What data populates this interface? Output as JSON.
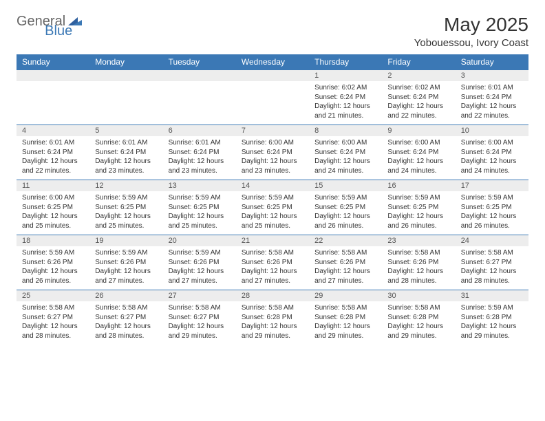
{
  "brand": {
    "part1": "General",
    "part2": "Blue"
  },
  "title": "May 2025",
  "location": "Yobouessou, Ivory Coast",
  "colors": {
    "header_bg": "#3b78b5",
    "header_text": "#ffffff",
    "daynum_bg": "#ededed",
    "border": "#3b78b5",
    "text": "#333333"
  },
  "weekdays": [
    "Sunday",
    "Monday",
    "Tuesday",
    "Wednesday",
    "Thursday",
    "Friday",
    "Saturday"
  ],
  "weeks": [
    [
      null,
      null,
      null,
      null,
      {
        "n": "1",
        "sr": "6:02 AM",
        "ss": "6:24 PM",
        "dl": "12 hours and 21 minutes."
      },
      {
        "n": "2",
        "sr": "6:02 AM",
        "ss": "6:24 PM",
        "dl": "12 hours and 22 minutes."
      },
      {
        "n": "3",
        "sr": "6:01 AM",
        "ss": "6:24 PM",
        "dl": "12 hours and 22 minutes."
      }
    ],
    [
      {
        "n": "4",
        "sr": "6:01 AM",
        "ss": "6:24 PM",
        "dl": "12 hours and 22 minutes."
      },
      {
        "n": "5",
        "sr": "6:01 AM",
        "ss": "6:24 PM",
        "dl": "12 hours and 23 minutes."
      },
      {
        "n": "6",
        "sr": "6:01 AM",
        "ss": "6:24 PM",
        "dl": "12 hours and 23 minutes."
      },
      {
        "n": "7",
        "sr": "6:00 AM",
        "ss": "6:24 PM",
        "dl": "12 hours and 23 minutes."
      },
      {
        "n": "8",
        "sr": "6:00 AM",
        "ss": "6:24 PM",
        "dl": "12 hours and 24 minutes."
      },
      {
        "n": "9",
        "sr": "6:00 AM",
        "ss": "6:24 PM",
        "dl": "12 hours and 24 minutes."
      },
      {
        "n": "10",
        "sr": "6:00 AM",
        "ss": "6:24 PM",
        "dl": "12 hours and 24 minutes."
      }
    ],
    [
      {
        "n": "11",
        "sr": "6:00 AM",
        "ss": "6:25 PM",
        "dl": "12 hours and 25 minutes."
      },
      {
        "n": "12",
        "sr": "5:59 AM",
        "ss": "6:25 PM",
        "dl": "12 hours and 25 minutes."
      },
      {
        "n": "13",
        "sr": "5:59 AM",
        "ss": "6:25 PM",
        "dl": "12 hours and 25 minutes."
      },
      {
        "n": "14",
        "sr": "5:59 AM",
        "ss": "6:25 PM",
        "dl": "12 hours and 25 minutes."
      },
      {
        "n": "15",
        "sr": "5:59 AM",
        "ss": "6:25 PM",
        "dl": "12 hours and 26 minutes."
      },
      {
        "n": "16",
        "sr": "5:59 AM",
        "ss": "6:25 PM",
        "dl": "12 hours and 26 minutes."
      },
      {
        "n": "17",
        "sr": "5:59 AM",
        "ss": "6:25 PM",
        "dl": "12 hours and 26 minutes."
      }
    ],
    [
      {
        "n": "18",
        "sr": "5:59 AM",
        "ss": "6:26 PM",
        "dl": "12 hours and 26 minutes."
      },
      {
        "n": "19",
        "sr": "5:59 AM",
        "ss": "6:26 PM",
        "dl": "12 hours and 27 minutes."
      },
      {
        "n": "20",
        "sr": "5:59 AM",
        "ss": "6:26 PM",
        "dl": "12 hours and 27 minutes."
      },
      {
        "n": "21",
        "sr": "5:58 AM",
        "ss": "6:26 PM",
        "dl": "12 hours and 27 minutes."
      },
      {
        "n": "22",
        "sr": "5:58 AM",
        "ss": "6:26 PM",
        "dl": "12 hours and 27 minutes."
      },
      {
        "n": "23",
        "sr": "5:58 AM",
        "ss": "6:26 PM",
        "dl": "12 hours and 28 minutes."
      },
      {
        "n": "24",
        "sr": "5:58 AM",
        "ss": "6:27 PM",
        "dl": "12 hours and 28 minutes."
      }
    ],
    [
      {
        "n": "25",
        "sr": "5:58 AM",
        "ss": "6:27 PM",
        "dl": "12 hours and 28 minutes."
      },
      {
        "n": "26",
        "sr": "5:58 AM",
        "ss": "6:27 PM",
        "dl": "12 hours and 28 minutes."
      },
      {
        "n": "27",
        "sr": "5:58 AM",
        "ss": "6:27 PM",
        "dl": "12 hours and 29 minutes."
      },
      {
        "n": "28",
        "sr": "5:58 AM",
        "ss": "6:28 PM",
        "dl": "12 hours and 29 minutes."
      },
      {
        "n": "29",
        "sr": "5:58 AM",
        "ss": "6:28 PM",
        "dl": "12 hours and 29 minutes."
      },
      {
        "n": "30",
        "sr": "5:58 AM",
        "ss": "6:28 PM",
        "dl": "12 hours and 29 minutes."
      },
      {
        "n": "31",
        "sr": "5:59 AM",
        "ss": "6:28 PM",
        "dl": "12 hours and 29 minutes."
      }
    ]
  ],
  "labels": {
    "sunrise": "Sunrise:",
    "sunset": "Sunset:",
    "daylight": "Daylight:"
  }
}
